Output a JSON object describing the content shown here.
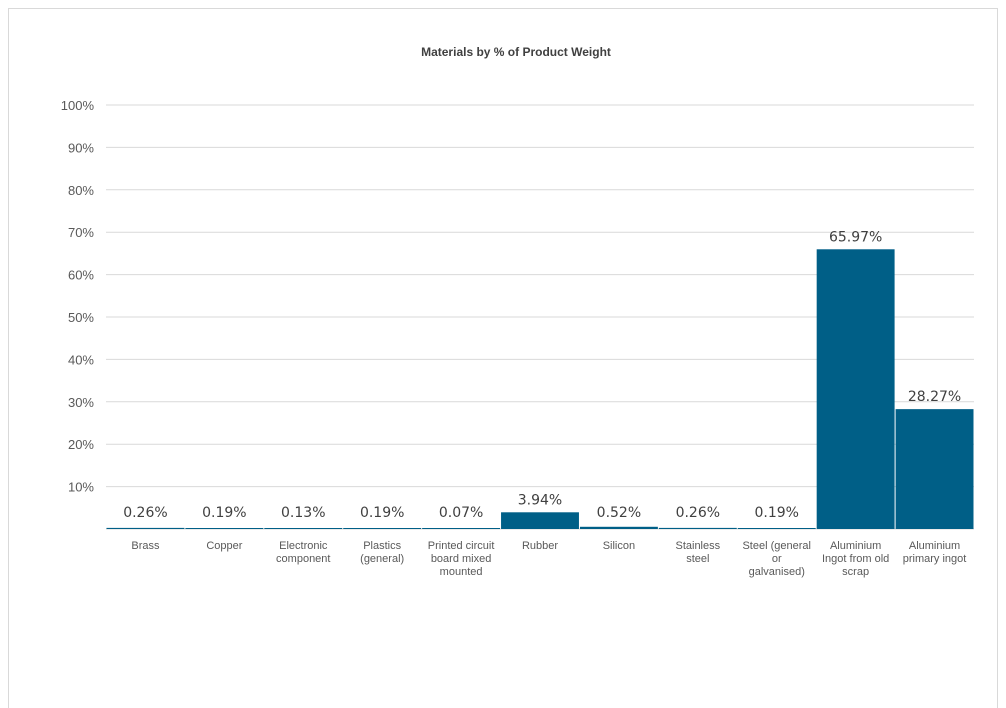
{
  "chart_data": {
    "type": "bar",
    "title": "Materials by % of Product Weight",
    "xlabel": "",
    "ylabel": "",
    "ylim": [
      0,
      100
    ],
    "yticks": [
      "10%",
      "20%",
      "30%",
      "40%",
      "50%",
      "60%",
      "70%",
      "80%",
      "90%",
      "100%"
    ],
    "grid": true,
    "legend": "none",
    "bar_color": "#005f87",
    "categories": [
      [
        "Brass"
      ],
      [
        "Copper"
      ],
      [
        "Electronic",
        "component"
      ],
      [
        "Plastics",
        "(general)"
      ],
      [
        "Printed circuit",
        "board mixed",
        "mounted"
      ],
      [
        "Rubber"
      ],
      [
        "Silicon"
      ],
      [
        "Stainless",
        "steel"
      ],
      [
        "Steel (general",
        "or",
        "galvanised)"
      ],
      [
        "Aluminium",
        "Ingot from old",
        "scrap"
      ],
      [
        "Aluminium",
        "primary ingot"
      ]
    ],
    "values": [
      0.26,
      0.19,
      0.13,
      0.19,
      0.07,
      3.94,
      0.52,
      0.26,
      0.19,
      65.97,
      28.27
    ],
    "data_labels": [
      "0.26%",
      "0.19%",
      "0.13%",
      "0.19%",
      "0.07%",
      "3.94%",
      "0.52%",
      "0.26%",
      "0.19%",
      "65.97%",
      "28.27%"
    ]
  }
}
